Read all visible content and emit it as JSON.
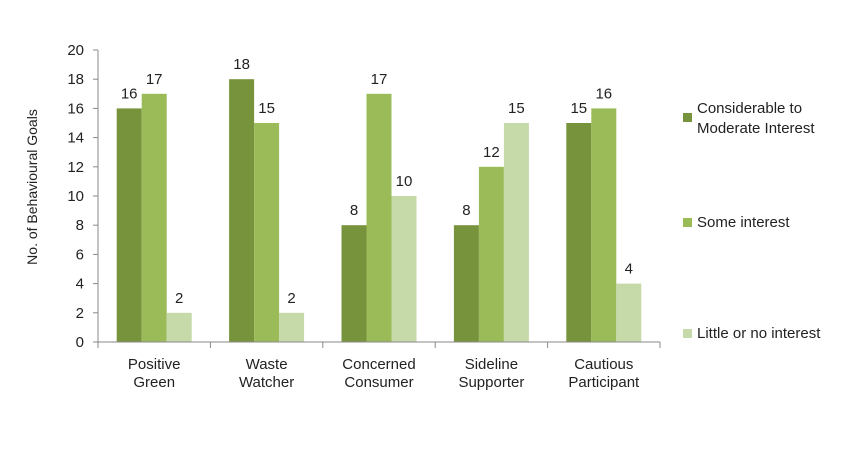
{
  "chart_data": {
    "type": "bar",
    "title": "",
    "xlabel": "",
    "ylabel": "No. of Behavioural Goals",
    "ylim": [
      0,
      20
    ],
    "yticks": [
      0,
      2,
      4,
      6,
      8,
      10,
      12,
      14,
      16,
      18,
      20
    ],
    "grid": false,
    "legend_position": "right",
    "categories": [
      [
        "Positive",
        "Green"
      ],
      [
        "Waste",
        "Watcher"
      ],
      [
        "Concerned",
        "Consumer"
      ],
      [
        "Sideline",
        "Supporter"
      ],
      [
        "Cautious",
        "Participant"
      ]
    ],
    "series": [
      {
        "name": [
          "Considerable to",
          "Moderate Interest"
        ],
        "color": "#77933C",
        "values": [
          16,
          18,
          8,
          8,
          15
        ]
      },
      {
        "name": [
          "Some interest"
        ],
        "color": "#9BBB59",
        "values": [
          17,
          15,
          17,
          12,
          16
        ]
      },
      {
        "name": [
          "Little or no interest"
        ],
        "color": "#C6D9A9",
        "values": [
          2,
          2,
          10,
          15,
          4
        ]
      }
    ]
  }
}
